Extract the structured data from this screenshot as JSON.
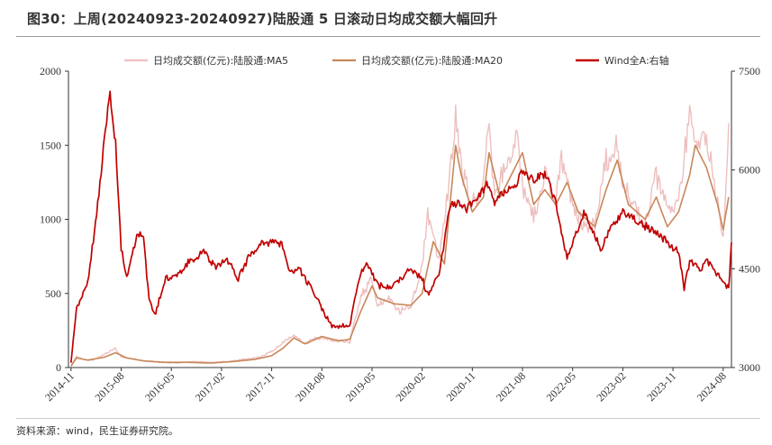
{
  "header": {
    "title": "图30：上周(20240923-20240927)陆股通 5 日滚动日均成交额大幅回升"
  },
  "footer": {
    "source": "资料来源：wind，民生证券研究院。"
  },
  "colors": {
    "ma5": "#eebfbf",
    "ma20": "#c8875a",
    "wind": "#c00000"
  },
  "chart_data": {
    "type": "line",
    "title": "图30：上周(20240923-20240927)陆股通 5 日滚动日均成交额大幅回升",
    "xlabel": "",
    "ylabel": "",
    "grid": false,
    "legend_position": "top",
    "x_range": [
      "2014-11",
      "2024-09"
    ],
    "x_ticks": [
      "2014-11",
      "2015-08",
      "2016-05",
      "2017-02",
      "2017-11",
      "2018-08",
      "2019-05",
      "2020-02",
      "2020-11",
      "2021-08",
      "2022-05",
      "2023-02",
      "2023-11",
      "2024-08"
    ],
    "y_left": {
      "min": 0,
      "max": 2000,
      "ticks": [
        0,
        500,
        1000,
        1500,
        2000
      ]
    },
    "y_right": {
      "min": 3000,
      "max": 7500,
      "ticks": [
        3000,
        4500,
        6000,
        7500
      ]
    },
    "series": [
      {
        "name": "日均成交额(亿元):陆股通:MA5",
        "axis": "left",
        "points": [
          [
            "2014-11",
            10
          ],
          [
            "2014-12",
            80
          ],
          [
            "2015-01",
            55
          ],
          [
            "2015-03",
            50
          ],
          [
            "2015-05",
            90
          ],
          [
            "2015-06",
            110
          ],
          [
            "2015-07",
            130
          ],
          [
            "2015-08",
            70
          ],
          [
            "2015-10",
            60
          ],
          [
            "2015-12",
            45
          ],
          [
            "2016-03",
            35
          ],
          [
            "2016-06",
            30
          ],
          [
            "2016-09",
            40
          ],
          [
            "2016-12",
            35
          ],
          [
            "2017-03",
            40
          ],
          [
            "2017-06",
            55
          ],
          [
            "2017-09",
            70
          ],
          [
            "2017-11",
            110
          ],
          [
            "2018-01",
            170
          ],
          [
            "2018-03",
            220
          ],
          [
            "2018-05",
            160
          ],
          [
            "2018-07",
            200
          ],
          [
            "2018-09",
            190
          ],
          [
            "2018-11",
            180
          ],
          [
            "2019-01",
            170
          ],
          [
            "2019-03",
            480
          ],
          [
            "2019-05",
            600
          ],
          [
            "2019-06",
            420
          ],
          [
            "2019-08",
            480
          ],
          [
            "2019-10",
            380
          ],
          [
            "2019-12",
            420
          ],
          [
            "2020-02",
            700
          ],
          [
            "2020-03",
            1050
          ],
          [
            "2020-05",
            720
          ],
          [
            "2020-07",
            1300
          ],
          [
            "2020-08",
            1680
          ],
          [
            "2020-09",
            1350
          ],
          [
            "2020-11",
            1100
          ],
          [
            "2021-01",
            1250
          ],
          [
            "2021-02",
            1690
          ],
          [
            "2021-03",
            1120
          ],
          [
            "2021-05",
            1400
          ],
          [
            "2021-07",
            1550
          ],
          [
            "2021-08",
            1200
          ],
          [
            "2021-10",
            1000
          ],
          [
            "2021-12",
            1300
          ],
          [
            "2022-02",
            1150
          ],
          [
            "2022-03",
            1400
          ],
          [
            "2022-05",
            1100
          ],
          [
            "2022-07",
            950
          ],
          [
            "2022-09",
            980
          ],
          [
            "2022-11",
            1400
          ],
          [
            "2023-01",
            1500
          ],
          [
            "2023-02",
            1250
          ],
          [
            "2023-04",
            1100
          ],
          [
            "2023-06",
            950
          ],
          [
            "2023-08",
            1300
          ],
          [
            "2023-10",
            1050
          ],
          [
            "2023-12",
            1100
          ],
          [
            "2024-02",
            1720
          ],
          [
            "2024-03",
            1450
          ],
          [
            "2024-05",
            1600
          ],
          [
            "2024-07",
            1100
          ],
          [
            "2024-08",
            900
          ],
          [
            "2024-09",
            1650
          ]
        ]
      },
      {
        "name": "日均成交额(亿元):陆股通:MA20",
        "axis": "left",
        "points": [
          [
            "2014-11",
            10
          ],
          [
            "2014-12",
            65
          ],
          [
            "2015-02",
            50
          ],
          [
            "2015-05",
            70
          ],
          [
            "2015-07",
            100
          ],
          [
            "2015-09",
            65
          ],
          [
            "2015-12",
            45
          ],
          [
            "2016-04",
            35
          ],
          [
            "2016-08",
            35
          ],
          [
            "2016-12",
            30
          ],
          [
            "2017-04",
            40
          ],
          [
            "2017-08",
            55
          ],
          [
            "2017-11",
            80
          ],
          [
            "2018-01",
            130
          ],
          [
            "2018-03",
            200
          ],
          [
            "2018-05",
            160
          ],
          [
            "2018-08",
            210
          ],
          [
            "2018-11",
            180
          ],
          [
            "2019-01",
            190
          ],
          [
            "2019-03",
            380
          ],
          [
            "2019-05",
            550
          ],
          [
            "2019-06",
            470
          ],
          [
            "2019-09",
            430
          ],
          [
            "2019-12",
            420
          ],
          [
            "2020-02",
            500
          ],
          [
            "2020-04",
            850
          ],
          [
            "2020-06",
            700
          ],
          [
            "2020-08",
            1500
          ],
          [
            "2020-09",
            1300
          ],
          [
            "2020-11",
            1050
          ],
          [
            "2021-01",
            1150
          ],
          [
            "2021-02",
            1450
          ],
          [
            "2021-04",
            1150
          ],
          [
            "2021-06",
            1300
          ],
          [
            "2021-08",
            1450
          ],
          [
            "2021-10",
            1100
          ],
          [
            "2021-12",
            1200
          ],
          [
            "2022-02",
            1100
          ],
          [
            "2022-04",
            1250
          ],
          [
            "2022-06",
            1050
          ],
          [
            "2022-09",
            950
          ],
          [
            "2022-11",
            1200
          ],
          [
            "2023-01",
            1400
          ],
          [
            "2023-03",
            1100
          ],
          [
            "2023-06",
            1000
          ],
          [
            "2023-08",
            1150
          ],
          [
            "2023-10",
            950
          ],
          [
            "2023-12",
            1050
          ],
          [
            "2024-02",
            1300
          ],
          [
            "2024-03",
            1500
          ],
          [
            "2024-05",
            1350
          ],
          [
            "2024-07",
            1100
          ],
          [
            "2024-08",
            930
          ],
          [
            "2024-09",
            1150
          ]
        ]
      },
      {
        "name": "Wind全A:右轴",
        "axis": "right",
        "points": [
          [
            "2014-11",
            3050
          ],
          [
            "2014-12",
            3900
          ],
          [
            "2015-02",
            4300
          ],
          [
            "2015-04",
            5600
          ],
          [
            "2015-05",
            6500
          ],
          [
            "2015-06",
            7150
          ],
          [
            "2015-07",
            6400
          ],
          [
            "2015-08",
            4800
          ],
          [
            "2015-09",
            4400
          ],
          [
            "2015-11",
            5050
          ],
          [
            "2015-12",
            5000
          ],
          [
            "2016-01",
            4000
          ],
          [
            "2016-02",
            3800
          ],
          [
            "2016-04",
            4350
          ],
          [
            "2016-06",
            4400
          ],
          [
            "2016-08",
            4600
          ],
          [
            "2016-11",
            4750
          ],
          [
            "2017-01",
            4500
          ],
          [
            "2017-03",
            4650
          ],
          [
            "2017-05",
            4350
          ],
          [
            "2017-07",
            4700
          ],
          [
            "2017-09",
            4900
          ],
          [
            "2017-11",
            4900
          ],
          [
            "2018-01",
            4850
          ],
          [
            "2018-02",
            4450
          ],
          [
            "2018-04",
            4500
          ],
          [
            "2018-06",
            4200
          ],
          [
            "2018-08",
            3900
          ],
          [
            "2018-10",
            3600
          ],
          [
            "2019-01",
            3650
          ],
          [
            "2019-03",
            4450
          ],
          [
            "2019-04",
            4600
          ],
          [
            "2019-06",
            4250
          ],
          [
            "2019-08",
            4200
          ],
          [
            "2019-10",
            4350
          ],
          [
            "2019-12",
            4500
          ],
          [
            "2020-02",
            4350
          ],
          [
            "2020-03",
            4100
          ],
          [
            "2020-05",
            4400
          ],
          [
            "2020-07",
            5450
          ],
          [
            "2020-08",
            5500
          ],
          [
            "2020-10",
            5400
          ],
          [
            "2020-12",
            5600
          ],
          [
            "2021-02",
            5800
          ],
          [
            "2021-03",
            5500
          ],
          [
            "2021-05",
            5700
          ],
          [
            "2021-07",
            5800
          ],
          [
            "2021-08",
            6000
          ],
          [
            "2021-10",
            5850
          ],
          [
            "2021-12",
            5950
          ],
          [
            "2022-02",
            5500
          ],
          [
            "2022-04",
            4650
          ],
          [
            "2022-05",
            4900
          ],
          [
            "2022-07",
            5350
          ],
          [
            "2022-09",
            5000
          ],
          [
            "2022-10",
            4800
          ],
          [
            "2022-12",
            5150
          ],
          [
            "2023-02",
            5350
          ],
          [
            "2023-04",
            5250
          ],
          [
            "2023-06",
            5150
          ],
          [
            "2023-08",
            5050
          ],
          [
            "2023-10",
            4900
          ],
          [
            "2023-12",
            4750
          ],
          [
            "2024-01",
            4200
          ],
          [
            "2024-02",
            4600
          ],
          [
            "2024-04",
            4500
          ],
          [
            "2024-05",
            4650
          ],
          [
            "2024-07",
            4400
          ],
          [
            "2024-08",
            4300
          ],
          [
            "2024-09",
            4200
          ],
          [
            "2024-09-30",
            4900
          ]
        ]
      }
    ]
  }
}
